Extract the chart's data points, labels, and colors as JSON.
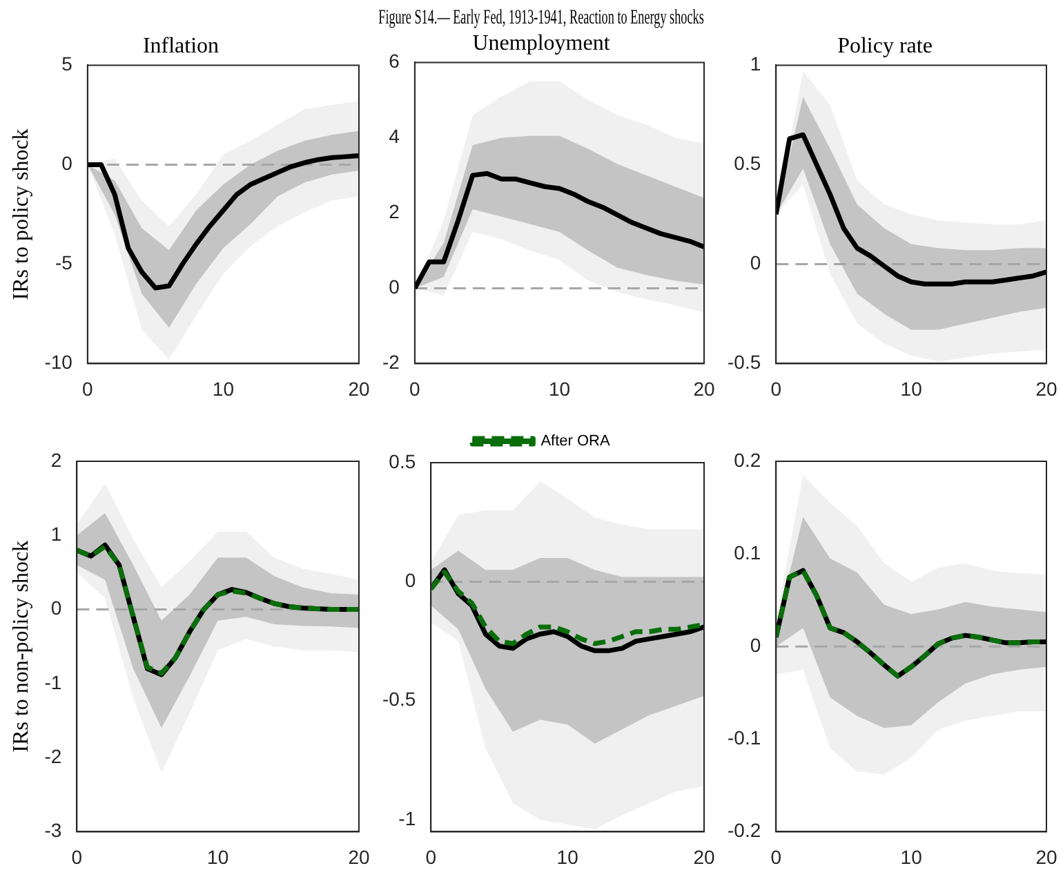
{
  "chart_data": [
    {
      "type": "line",
      "title": "Inflation",
      "ylabel": "IRs to policy shock",
      "x": [
        0,
        1,
        2,
        3,
        4,
        5,
        6,
        7,
        8,
        9,
        10,
        11,
        12,
        13,
        14,
        15,
        16,
        17,
        18,
        19,
        20
      ],
      "xlim": [
        0,
        20
      ],
      "xticks": [
        0,
        10,
        20
      ],
      "ylim": [
        -10,
        5
      ],
      "yticks": [
        -10,
        -5,
        0,
        5
      ],
      "grid": false,
      "legend": false,
      "ref_lines": [
        {
          "axis": "y",
          "value": 0,
          "color": "#a6a6a6",
          "line_style": "dashed"
        }
      ],
      "series": [
        {
          "color": "#f0f0f0",
          "x": [
            0,
            2,
            4,
            6,
            8,
            10,
            12,
            14,
            16,
            18,
            20
          ],
          "values": [
            null,
            null,
            null,
            null,
            null,
            null,
            null,
            null,
            null,
            null,
            null
          ],
          "lower": [
            0,
            -3.5,
            -8.3,
            -9.8,
            -7.6,
            -5.5,
            -4.1,
            -3.1,
            -2.4,
            -1.8,
            -1.6
          ],
          "upper": [
            0,
            0.3,
            -1.8,
            -3.1,
            -1.5,
            0.5,
            1.2,
            2.0,
            2.8,
            3.0,
            3.2
          ]
        },
        {
          "color": "#c4c4c4",
          "x": [
            0,
            2,
            4,
            6,
            8,
            10,
            12,
            14,
            16,
            18,
            20
          ],
          "values": [
            null,
            null,
            null,
            null,
            null,
            null,
            null,
            null,
            null,
            null,
            null
          ],
          "lower": [
            0,
            -2.5,
            -6.5,
            -8.2,
            -6.0,
            -4.2,
            -3.0,
            -1.6,
            -0.9,
            -0.5,
            -0.3
          ],
          "upper": [
            0,
            -0.8,
            -3.2,
            -4.3,
            -2.3,
            -1.0,
            0,
            0.7,
            1.2,
            1.5,
            1.7
          ]
        },
        {
          "color": "#000000",
          "values": [
            0,
            0,
            -1.5,
            -4.2,
            -5.4,
            -6.2,
            -6.1,
            -5.0,
            -4.0,
            -3.1,
            -2.3,
            -1.5,
            -1.0,
            -0.7,
            -0.4,
            -0.1,
            0.1,
            0.25,
            0.35,
            0.4,
            0.45
          ]
        }
      ]
    },
    {
      "type": "line",
      "title": "Figure S14.— Early Fed, 1913-1941, Reaction to Energy shocks",
      "subtitle": "Unemployment",
      "x": [
        0,
        1,
        2,
        3,
        4,
        5,
        6,
        7,
        8,
        9,
        10,
        11,
        12,
        13,
        14,
        15,
        16,
        17,
        18,
        19,
        20
      ],
      "xlim": [
        0,
        20
      ],
      "xticks": [
        0,
        10,
        20
      ],
      "ylim": [
        -2,
        6
      ],
      "yticks": [
        -2,
        0,
        2,
        4,
        6
      ],
      "grid": false,
      "legend": false,
      "ref_lines": [
        {
          "axis": "y",
          "value": 0,
          "color": "#a6a6a6",
          "line_style": "dashed"
        }
      ],
      "series": [
        {
          "color": "#f0f0f0",
          "x": [
            0,
            2,
            4,
            6,
            8,
            10,
            12,
            14,
            16,
            18,
            20
          ],
          "values": [
            null,
            null,
            null,
            null,
            null,
            null,
            null,
            null,
            null,
            null,
            null
          ],
          "lower": [
            0,
            -0.2,
            1.5,
            1.3,
            1.0,
            0.75,
            0.2,
            -0.1,
            -0.3,
            -0.45,
            -0.65
          ],
          "upper": [
            0,
            1.8,
            4.6,
            5.1,
            5.5,
            5.5,
            5.0,
            4.6,
            4.35,
            4.0,
            3.85
          ]
        },
        {
          "color": "#c4c4c4",
          "x": [
            0,
            2,
            4,
            6,
            8,
            10,
            12,
            14,
            16,
            18,
            20
          ],
          "values": [
            null,
            null,
            null,
            null,
            null,
            null,
            null,
            null,
            null,
            null,
            null
          ],
          "lower": [
            0,
            0.3,
            2.1,
            1.9,
            1.7,
            1.5,
            1.0,
            0.55,
            0.35,
            0.2,
            0.1
          ],
          "upper": [
            0,
            1.2,
            3.8,
            4.0,
            4.05,
            4.05,
            3.7,
            3.3,
            3.0,
            2.7,
            2.4
          ]
        },
        {
          "color": "#000000",
          "values": [
            0,
            0.7,
            0.7,
            1.8,
            3.0,
            3.05,
            2.9,
            2.9,
            2.8,
            2.7,
            2.65,
            2.5,
            2.3,
            2.15,
            1.95,
            1.75,
            1.6,
            1.45,
            1.35,
            1.25,
            1.1
          ]
        }
      ]
    },
    {
      "type": "line",
      "title": "Policy rate",
      "x": [
        0,
        1,
        2,
        3,
        4,
        5,
        6,
        7,
        8,
        9,
        10,
        11,
        12,
        13,
        14,
        15,
        16,
        17,
        18,
        19,
        20
      ],
      "xlim": [
        0,
        20
      ],
      "xticks": [
        0,
        10,
        20
      ],
      "ylim": [
        -0.5,
        1
      ],
      "yticks": [
        -0.5,
        0,
        0.5,
        1
      ],
      "grid": false,
      "legend": false,
      "ref_lines": [
        {
          "axis": "y",
          "value": 0,
          "color": "#a6a6a6",
          "line_style": "dashed"
        }
      ],
      "series": [
        {
          "color": "#f0f0f0",
          "x": [
            0,
            2,
            4,
            6,
            8,
            10,
            12,
            14,
            16,
            18,
            20
          ],
          "values": [
            null,
            null,
            null,
            null,
            null,
            null,
            null,
            null,
            null,
            null,
            null
          ],
          "lower": [
            0.25,
            0.4,
            -0.05,
            -0.3,
            -0.4,
            -0.46,
            -0.49,
            -0.47,
            -0.45,
            -0.44,
            -0.43
          ],
          "upper": [
            0.25,
            0.97,
            0.8,
            0.42,
            0.3,
            0.25,
            0.22,
            0.21,
            0.2,
            0.2,
            0.22
          ]
        },
        {
          "color": "#c4c4c4",
          "x": [
            0,
            2,
            4,
            6,
            8,
            10,
            12,
            14,
            16,
            18,
            20
          ],
          "values": [
            null,
            null,
            null,
            null,
            null,
            null,
            null,
            null,
            null,
            null,
            null
          ],
          "lower": [
            0.25,
            0.48,
            0.1,
            -0.15,
            -0.25,
            -0.33,
            -0.33,
            -0.3,
            -0.27,
            -0.24,
            -0.22
          ],
          "upper": [
            0.25,
            0.84,
            0.58,
            0.3,
            0.18,
            0.1,
            0.08,
            0.07,
            0.07,
            0.08,
            0.08
          ]
        },
        {
          "color": "#000000",
          "values": [
            0.25,
            0.63,
            0.65,
            0.5,
            0.35,
            0.18,
            0.08,
            0.04,
            -0.01,
            -0.06,
            -0.09,
            -0.1,
            -0.1,
            -0.1,
            -0.09,
            -0.09,
            -0.09,
            -0.08,
            -0.07,
            -0.06,
            -0.04
          ]
        }
      ]
    },
    {
      "type": "line",
      "ylabel": "IRs to non-policy shock",
      "x": [
        0,
        1,
        2,
        3,
        4,
        5,
        6,
        7,
        8,
        9,
        10,
        11,
        12,
        13,
        14,
        15,
        16,
        17,
        18,
        19,
        20
      ],
      "xlim": [
        0,
        20
      ],
      "xticks": [
        0,
        10,
        20
      ],
      "ylim": [
        -3,
        2
      ],
      "yticks": [
        -3,
        -2,
        -1,
        0,
        1,
        2
      ],
      "grid": false,
      "legend": false,
      "ref_lines": [
        {
          "axis": "y",
          "value": 0,
          "color": "#a6a6a6",
          "line_style": "dashed"
        }
      ],
      "series": [
        {
          "color": "#f0f0f0",
          "x": [
            0,
            2,
            4,
            6,
            8,
            10,
            12,
            14,
            16,
            18,
            20
          ],
          "values": [
            null,
            null,
            null,
            null,
            null,
            null,
            null,
            null,
            null,
            null,
            null
          ],
          "lower": [
            0.5,
            0.15,
            -1.2,
            -2.2,
            -1.4,
            -0.55,
            -0.4,
            -0.5,
            -0.55,
            -0.55,
            -0.58
          ],
          "upper": [
            1.15,
            1.7,
            0.95,
            0.3,
            0.65,
            1.05,
            1.05,
            0.7,
            0.55,
            0.48,
            0.4
          ]
        },
        {
          "color": "#c4c4c4",
          "x": [
            0,
            2,
            4,
            6,
            8,
            10,
            12,
            14,
            16,
            18,
            20
          ],
          "values": [
            null,
            null,
            null,
            null,
            null,
            null,
            null,
            null,
            null,
            null,
            null
          ],
          "lower": [
            0.6,
            0.4,
            -0.8,
            -1.6,
            -0.9,
            -0.15,
            -0.1,
            -0.2,
            -0.22,
            -0.23,
            -0.25
          ],
          "upper": [
            1.0,
            1.3,
            0.6,
            -0.15,
            0.2,
            0.7,
            0.7,
            0.45,
            0.3,
            0.22,
            0.2
          ]
        },
        {
          "color": "#000000",
          "values": [
            0.8,
            0.72,
            0.87,
            0.6,
            -0.1,
            -0.8,
            -0.88,
            -0.65,
            -0.3,
            0,
            0.2,
            0.27,
            0.23,
            0.15,
            0.08,
            0.04,
            0.02,
            0.01,
            0,
            0,
            0
          ]
        },
        {
          "color": "#0a6e0a",
          "line_style": "dashed",
          "values": [
            0.8,
            0.72,
            0.85,
            0.6,
            -0.1,
            -0.78,
            -0.86,
            -0.65,
            -0.3,
            0,
            0.2,
            0.25,
            0.22,
            0.15,
            0.08,
            0.04,
            0.02,
            0.01,
            0,
            0,
            0
          ]
        }
      ]
    },
    {
      "type": "line",
      "x": [
        0,
        1,
        2,
        3,
        4,
        5,
        6,
        7,
        8,
        9,
        10,
        11,
        12,
        13,
        14,
        15,
        16,
        17,
        18,
        19,
        20
      ],
      "xlim": [
        0,
        20
      ],
      "xticks": [
        0,
        10,
        20
      ],
      "ylim": [
        -1.05,
        0.5
      ],
      "yticks": [
        -1,
        -0.5,
        0,
        0.5
      ],
      "grid": false,
      "legend": "top",
      "ref_lines": [
        {
          "axis": "y",
          "value": 0,
          "color": "#a6a6a6",
          "line_style": "dashed"
        }
      ],
      "series": [
        {
          "color": "#f0f0f0",
          "x": [
            0,
            2,
            4,
            6,
            8,
            10,
            12,
            14,
            16,
            18,
            20
          ],
          "values": [
            null,
            null,
            null,
            null,
            null,
            null,
            null,
            null,
            null,
            null,
            null
          ],
          "lower": [
            -0.17,
            -0.25,
            -0.7,
            -0.93,
            -1.0,
            -1.02,
            -1.04,
            -0.98,
            -0.93,
            -0.88,
            -0.86
          ],
          "upper": [
            0.08,
            0.28,
            0.3,
            0.3,
            0.42,
            0.35,
            0.27,
            0.24,
            0.22,
            0.22,
            0.22
          ]
        },
        {
          "color": "#c4c4c4",
          "x": [
            0,
            2,
            4,
            6,
            8,
            10,
            12,
            14,
            16,
            18,
            20
          ],
          "values": [
            null,
            null,
            null,
            null,
            null,
            null,
            null,
            null,
            null,
            null,
            null
          ],
          "lower": [
            -0.1,
            -0.2,
            -0.45,
            -0.63,
            -0.58,
            -0.6,
            -0.68,
            -0.62,
            -0.56,
            -0.52,
            -0.48
          ],
          "upper": [
            0.05,
            0.13,
            0.05,
            0.05,
            0.1,
            0.1,
            0.05,
            0.02,
            0.02,
            0.02,
            0.02
          ]
        },
        {
          "color": "#000000",
          "values": [
            -0.03,
            0.05,
            -0.05,
            -0.1,
            -0.22,
            -0.27,
            -0.28,
            -0.24,
            -0.22,
            -0.21,
            -0.23,
            -0.27,
            -0.29,
            -0.29,
            -0.28,
            -0.25,
            -0.24,
            -0.23,
            -0.22,
            -0.21,
            -0.19
          ]
        },
        {
          "name": "After ORA",
          "color": "#0a6e0a",
          "line_style": "dashed",
          "values": [
            -0.03,
            0.04,
            -0.04,
            -0.09,
            -0.19,
            -0.25,
            -0.26,
            -0.22,
            -0.19,
            -0.19,
            -0.21,
            -0.24,
            -0.26,
            -0.25,
            -0.23,
            -0.21,
            -0.21,
            -0.2,
            -0.2,
            -0.19,
            -0.18
          ]
        }
      ]
    },
    {
      "type": "line",
      "x": [
        0,
        1,
        2,
        3,
        4,
        5,
        6,
        7,
        8,
        9,
        10,
        11,
        12,
        13,
        14,
        15,
        16,
        17,
        18,
        19,
        20
      ],
      "xlim": [
        0,
        20
      ],
      "xticks": [
        0,
        10,
        20
      ],
      "ylim": [
        -0.2,
        0.2
      ],
      "yticks": [
        -0.2,
        -0.1,
        0,
        0.1,
        0.2
      ],
      "grid": false,
      "legend": false,
      "ref_lines": [
        {
          "axis": "y",
          "value": 0,
          "color": "#a6a6a6",
          "line_style": "dashed"
        }
      ],
      "series": [
        {
          "color": "#f0f0f0",
          "x": [
            0,
            2,
            4,
            6,
            8,
            10,
            12,
            14,
            16,
            18,
            20
          ],
          "values": [
            null,
            null,
            null,
            null,
            null,
            null,
            null,
            null,
            null,
            null,
            null
          ],
          "lower": [
            -0.03,
            -0.025,
            -0.11,
            -0.135,
            -0.138,
            -0.12,
            -0.09,
            -0.08,
            -0.075,
            -0.07,
            -0.07
          ],
          "upper": [
            0.03,
            0.185,
            0.155,
            0.13,
            0.09,
            0.07,
            0.085,
            0.09,
            0.082,
            0.079,
            0.078
          ]
        },
        {
          "color": "#c4c4c4",
          "x": [
            0,
            2,
            4,
            6,
            8,
            10,
            12,
            14,
            16,
            18,
            20
          ],
          "values": [
            null,
            null,
            null,
            null,
            null,
            null,
            null,
            null,
            null,
            null,
            null
          ],
          "lower": [
            0,
            0.02,
            -0.055,
            -0.075,
            -0.088,
            -0.085,
            -0.06,
            -0.04,
            -0.03,
            -0.025,
            -0.022
          ],
          "upper": [
            0.02,
            0.14,
            0.095,
            0.08,
            0.045,
            0.035,
            0.04,
            0.048,
            0.043,
            0.04,
            0.037
          ]
        },
        {
          "color": "#000000",
          "values": [
            0.01,
            0.075,
            0.082,
            0.055,
            0.02,
            0.015,
            0.005,
            -0.007,
            -0.02,
            -0.032,
            -0.022,
            -0.01,
            0.003,
            0.009,
            0.012,
            0.01,
            0.007,
            0.004,
            0.004,
            0.005,
            0.005
          ]
        },
        {
          "color": "#0a6e0a",
          "line_style": "dashed",
          "values": [
            0.01,
            0.075,
            0.082,
            0.055,
            0.02,
            0.015,
            0.005,
            -0.007,
            -0.02,
            -0.032,
            -0.022,
            -0.01,
            0.003,
            0.009,
            0.012,
            0.01,
            0.007,
            0.004,
            0.004,
            0.005,
            0.005
          ]
        }
      ]
    }
  ]
}
